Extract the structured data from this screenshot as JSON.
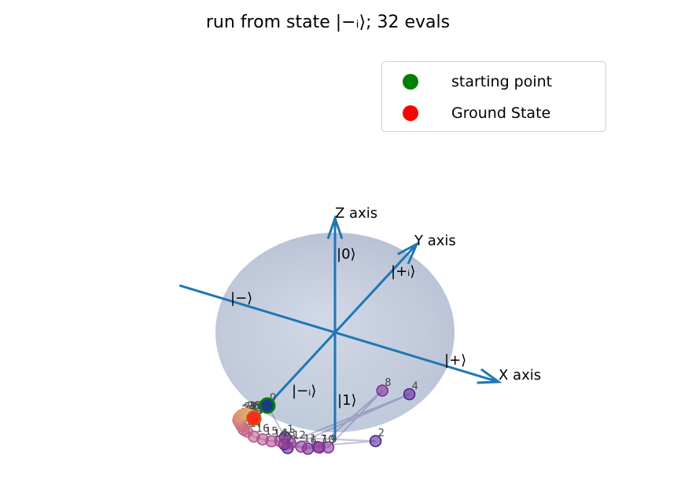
{
  "chart_data": {
    "type": "scatter",
    "title": "run from state |−ᵢ⟩; 32 evals",
    "axes": [
      {
        "name": "x",
        "label": "X axis"
      },
      {
        "name": "y",
        "label": "Y axis"
      },
      {
        "name": "z",
        "label": "Z axis"
      }
    ],
    "state_labels": [
      {
        "id": "zero",
        "text": "|0⟩"
      },
      {
        "id": "one",
        "text": "|1⟩"
      },
      {
        "id": "plus",
        "text": "|+⟩"
      },
      {
        "id": "minus",
        "text": "|−⟩"
      },
      {
        "id": "plus_i",
        "text": "|+ᵢ⟩"
      },
      {
        "id": "minus_i",
        "text": "|−ᵢ⟩"
      }
    ],
    "legend": {
      "placement": "top-right",
      "entries": [
        {
          "label": "starting point",
          "color": "#008000"
        },
        {
          "label": "Ground State",
          "color": "#ff0000"
        }
      ]
    },
    "starting_point": {
      "x": 0.0,
      "y": -1.0,
      "z": 0.0
    },
    "ground_state": {
      "x": -0.45,
      "y": -0.3,
      "z": -0.85
    },
    "trajectory": [
      {
        "i": 0,
        "x": 0.0,
        "y": -1.0,
        "z": 0.0
      },
      {
        "i": 1,
        "x": -0.22,
        "y": -0.3,
        "z": -0.95
      },
      {
        "i": 2,
        "x": 0.35,
        "y": -0.1,
        "z": -0.9
      },
      {
        "i": 3,
        "x": -0.1,
        "y": -0.5,
        "z": -0.86
      },
      {
        "i": 4,
        "x": 0.45,
        "y": 0.2,
        "z": -0.6
      },
      {
        "i": 5,
        "x": -0.15,
        "y": -0.45,
        "z": -0.88
      },
      {
        "i": 6,
        "x": 0.0,
        "y": -0.4,
        "z": -0.9
      },
      {
        "i": 7,
        "x": 0.05,
        "y": -0.35,
        "z": -0.9
      },
      {
        "i": 8,
        "x": 0.3,
        "y": 0.1,
        "z": -0.55
      },
      {
        "i": 9,
        "x": 0.1,
        "y": -0.3,
        "z": -0.92
      },
      {
        "i": 10,
        "x": 0.05,
        "y": -0.33,
        "z": -0.92
      },
      {
        "i": 11,
        "x": -0.05,
        "y": -0.4,
        "z": -0.9
      },
      {
        "i": 12,
        "x": -0.12,
        "y": -0.42,
        "z": -0.88
      },
      {
        "i": 13,
        "x": -0.18,
        "y": -0.45,
        "z": -0.86
      },
      {
        "i": 14,
        "x": -0.22,
        "y": -0.5,
        "z": -0.84
      },
      {
        "i": 15,
        "x": -0.26,
        "y": -0.55,
        "z": -0.8
      },
      {
        "i": 16,
        "x": -0.3,
        "y": -0.6,
        "z": -0.75
      },
      {
        "i": 17,
        "x": -0.34,
        "y": -0.62,
        "z": -0.7
      },
      {
        "i": 18,
        "x": -0.36,
        "y": -0.63,
        "z": -0.68
      },
      {
        "i": 19,
        "x": -0.38,
        "y": -0.62,
        "z": -0.66
      },
      {
        "i": 20,
        "x": -0.4,
        "y": -0.6,
        "z": -0.66
      },
      {
        "i": 21,
        "x": -0.42,
        "y": -0.58,
        "z": -0.66
      },
      {
        "i": 22,
        "x": -0.44,
        "y": -0.55,
        "z": -0.68
      },
      {
        "i": 23,
        "x": -0.46,
        "y": -0.5,
        "z": -0.7
      },
      {
        "i": 24,
        "x": -0.47,
        "y": -0.46,
        "z": -0.72
      },
      {
        "i": 25,
        "x": -0.48,
        "y": -0.42,
        "z": -0.74
      },
      {
        "i": 26,
        "x": -0.48,
        "y": -0.38,
        "z": -0.76
      },
      {
        "i": 27,
        "x": -0.48,
        "y": -0.35,
        "z": -0.78
      },
      {
        "i": 28,
        "x": -0.47,
        "y": -0.33,
        "z": -0.8
      },
      {
        "i": 29,
        "x": -0.46,
        "y": -0.31,
        "z": -0.82
      },
      {
        "i": 30,
        "x": -0.45,
        "y": -0.3,
        "z": -0.83
      },
      {
        "i": 31,
        "x": -0.45,
        "y": -0.3,
        "z": -0.85
      }
    ]
  }
}
